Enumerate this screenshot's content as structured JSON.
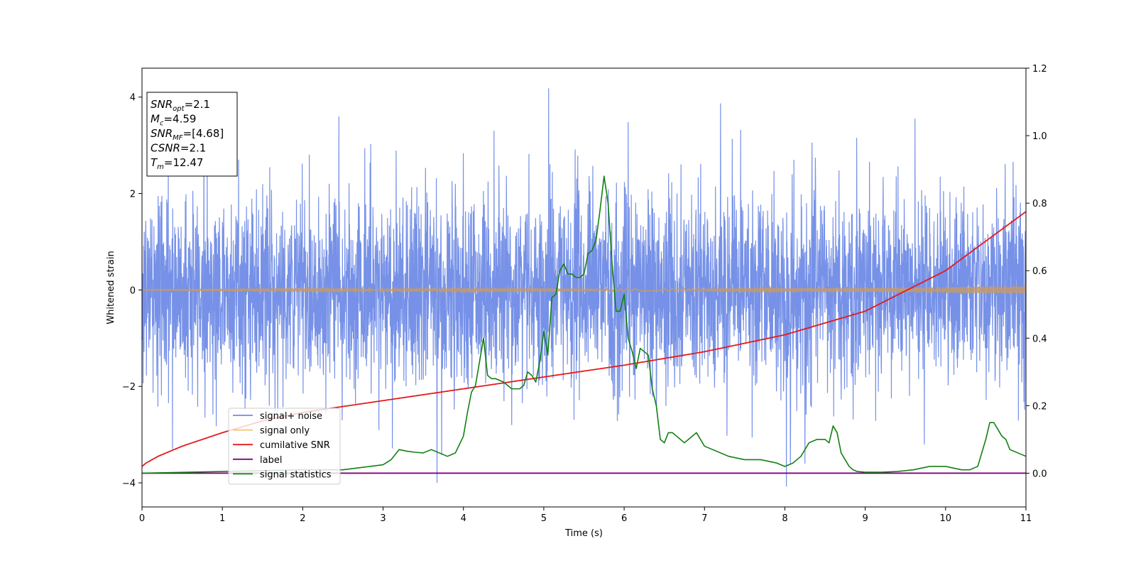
{
  "chart_data": {
    "type": "line",
    "xlabel": "Time (s)",
    "ylabel": "Whitened strain",
    "xlim": [
      0,
      11
    ],
    "ylim_left": [
      -4.5,
      4.6
    ],
    "ylim_right": [
      -0.1,
      1.2
    ],
    "x_ticks": [
      0,
      1,
      2,
      3,
      4,
      5,
      6,
      7,
      8,
      9,
      10,
      11
    ],
    "y_ticks_left": [
      -4,
      -2,
      0,
      2,
      4
    ],
    "y_ticks_right": [
      0.0,
      0.2,
      0.4,
      0.6,
      0.8,
      1.0,
      1.2
    ],
    "grid": false,
    "legend_position": "lower-left",
    "legend": [
      {
        "name": "signal+ noise",
        "color": "#6f8be6"
      },
      {
        "name": "signal only",
        "color": "#f5c36a"
      },
      {
        "name": "cumilative SNR",
        "color": "#e41a1c"
      },
      {
        "name": "label",
        "color": "#800080"
      },
      {
        "name": "signal statistics",
        "color": "#138013"
      }
    ],
    "annotation": {
      "lines": [
        {
          "base": "SNR",
          "sub": "opt",
          "value": "=2.1"
        },
        {
          "base": "M",
          "sub": "c",
          "value": "=4.59"
        },
        {
          "base": "SNR",
          "sub": "MF",
          "value": "=[4.68]"
        },
        {
          "base": "CSNR",
          "sub": "",
          "value": "=2.1"
        },
        {
          "base": "T",
          "sub": "m",
          "value": "=12.47"
        }
      ]
    },
    "series": [
      {
        "name": "signal+ noise",
        "axis": "left",
        "color": "#6f8be6",
        "envelope": {
          "amplitude_sigma": 1.0,
          "peak_max": 4.18,
          "peak_min": -4.08
        },
        "spikes": [
          [
            5.06,
            4.18
          ],
          [
            3.67,
            -4.0
          ],
          [
            8.02,
            -4.08
          ],
          [
            7.2,
            3.87
          ],
          [
            2.45,
            3.6
          ],
          [
            9.62,
            3.55
          ],
          [
            6.05,
            3.48
          ],
          [
            4.38,
            3.3
          ],
          [
            3.73,
            -3.42
          ],
          [
            0.38,
            -3.3
          ]
        ]
      },
      {
        "name": "signal only",
        "axis": "left",
        "color": "#f5c36a",
        "x": [
          0,
          2,
          4,
          6,
          8,
          9,
          10,
          11
        ],
        "y_amplitude": [
          0.01,
          0.012,
          0.015,
          0.02,
          0.03,
          0.04,
          0.06,
          0.08
        ]
      },
      {
        "name": "cumilative SNR",
        "axis": "right",
        "color": "#e41a1c",
        "x": [
          0,
          0.05,
          0.2,
          0.5,
          1.0,
          1.5,
          2.0,
          3.0,
          4.0,
          5.0,
          6.0,
          7.0,
          8.0,
          9.0,
          10.0,
          11.0
        ],
        "y": [
          0.02,
          0.03,
          0.05,
          0.08,
          0.12,
          0.155,
          0.18,
          0.215,
          0.25,
          0.285,
          0.32,
          0.36,
          0.41,
          0.48,
          0.6,
          0.775
        ]
      },
      {
        "name": "label",
        "axis": "right",
        "color": "#800080",
        "x": [
          0,
          11
        ],
        "y": [
          0.0,
          0.0
        ]
      },
      {
        "name": "signal statistics",
        "axis": "right",
        "color": "#138013",
        "x": [
          0,
          1,
          2,
          2.5,
          3,
          3.1,
          3.2,
          3.3,
          3.4,
          3.5,
          3.55,
          3.6,
          3.7,
          3.8,
          3.9,
          4.0,
          4.05,
          4.1,
          4.15,
          4.2,
          4.25,
          4.3,
          4.35,
          4.4,
          4.5,
          4.55,
          4.6,
          4.7,
          4.75,
          4.8,
          4.85,
          4.9,
          4.95,
          5.0,
          5.05,
          5.1,
          5.15,
          5.2,
          5.25,
          5.3,
          5.35,
          5.4,
          5.45,
          5.5,
          5.55,
          5.6,
          5.65,
          5.7,
          5.75,
          5.8,
          5.85,
          5.9,
          5.95,
          6.0,
          6.05,
          6.1,
          6.15,
          6.2,
          6.25,
          6.3,
          6.35,
          6.4,
          6.45,
          6.5,
          6.55,
          6.6,
          6.65,
          6.7,
          6.75,
          6.8,
          6.9,
          7.0,
          7.1,
          7.2,
          7.3,
          7.5,
          7.7,
          7.9,
          8.0,
          8.1,
          8.2,
          8.3,
          8.4,
          8.5,
          8.55,
          8.6,
          8.65,
          8.7,
          8.75,
          8.8,
          8.85,
          8.9,
          9.0,
          9.2,
          9.4,
          9.6,
          9.8,
          10.0,
          10.2,
          10.3,
          10.4,
          10.45,
          10.5,
          10.55,
          10.6,
          10.65,
          10.7,
          10.75,
          10.8,
          10.9,
          11.0
        ],
        "y": [
          0.0,
          0.005,
          0.01,
          0.01,
          0.025,
          0.04,
          0.07,
          0.065,
          0.062,
          0.06,
          0.065,
          0.07,
          0.06,
          0.05,
          0.06,
          0.11,
          0.18,
          0.24,
          0.26,
          0.33,
          0.4,
          0.29,
          0.28,
          0.28,
          0.27,
          0.26,
          0.25,
          0.25,
          0.26,
          0.3,
          0.29,
          0.27,
          0.33,
          0.42,
          0.35,
          0.52,
          0.53,
          0.6,
          0.62,
          0.59,
          0.59,
          0.58,
          0.58,
          0.59,
          0.65,
          0.66,
          0.69,
          0.78,
          0.88,
          0.8,
          0.62,
          0.48,
          0.48,
          0.53,
          0.4,
          0.36,
          0.31,
          0.37,
          0.36,
          0.35,
          0.25,
          0.2,
          0.1,
          0.09,
          0.12,
          0.12,
          0.11,
          0.1,
          0.09,
          0.1,
          0.12,
          0.08,
          0.07,
          0.06,
          0.05,
          0.04,
          0.04,
          0.03,
          0.02,
          0.03,
          0.05,
          0.09,
          0.1,
          0.1,
          0.09,
          0.14,
          0.12,
          0.06,
          0.04,
          0.02,
          0.01,
          0.005,
          0.003,
          0.003,
          0.005,
          0.01,
          0.02,
          0.02,
          0.01,
          0.01,
          0.02,
          0.06,
          0.1,
          0.15,
          0.15,
          0.13,
          0.11,
          0.1,
          0.07,
          0.06,
          0.05
        ]
      }
    ]
  }
}
